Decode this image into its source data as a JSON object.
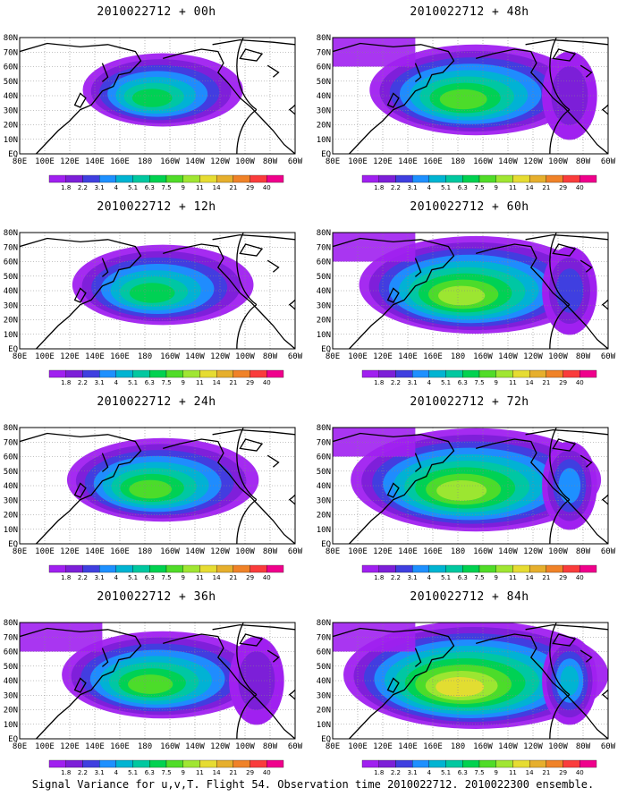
{
  "panels": [
    {
      "title": "2010022712 + 00h",
      "lead": "00h",
      "intensity": 0.45
    },
    {
      "title": "2010022712 + 48h",
      "lead": "48h",
      "intensity": 0.7
    },
    {
      "title": "2010022712 + 12h",
      "lead": "12h",
      "intensity": 0.55
    },
    {
      "title": "2010022712 + 60h",
      "lead": "60h",
      "intensity": 0.8
    },
    {
      "title": "2010022712 + 24h",
      "lead": "24h",
      "intensity": 0.6
    },
    {
      "title": "2010022712 + 72h",
      "lead": "72h",
      "intensity": 0.88
    },
    {
      "title": "2010022712 + 36h",
      "lead": "36h",
      "intensity": 0.65
    },
    {
      "title": "2010022712 + 84h",
      "lead": "84h",
      "intensity": 0.95
    }
  ],
  "lat_labels": [
    "80N",
    "70N",
    "60N",
    "50N",
    "40N",
    "30N",
    "20N",
    "10N",
    "EQ"
  ],
  "lon_labels": [
    "80E",
    "100E",
    "120E",
    "140E",
    "160E",
    "180",
    "160W",
    "140W",
    "120W",
    "100W",
    "80W",
    "60W"
  ],
  "colorbar": {
    "labels": [
      "1.8",
      "2.2",
      "3.1",
      "4",
      "5.1",
      "6.3",
      "7.5",
      "9",
      "11",
      "14",
      "21",
      "29",
      "40"
    ],
    "colors": [
      "#a020f0",
      "#7c1fd8",
      "#3f3fe0",
      "#1e90ff",
      "#00b4d2",
      "#00c8a0",
      "#00d250",
      "#50dc28",
      "#a0e632",
      "#e6dc32",
      "#e6af2d",
      "#f08228",
      "#fa3c3c",
      "#f0008c"
    ]
  },
  "footer": "Signal Variance for u,v,T. Flight 54. Observation time 2010022712. 2010022300 ensemble."
}
